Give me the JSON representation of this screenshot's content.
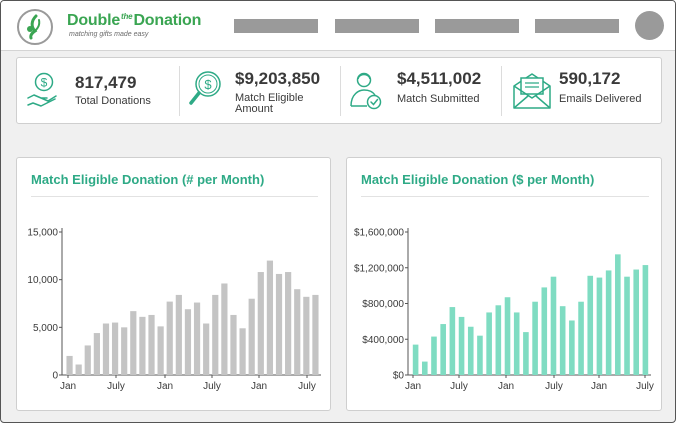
{
  "header": {
    "logo_word1": "Double",
    "logo_word2": "the",
    "logo_word3": "Donation",
    "logo_tagline": "matching gifts made easy",
    "logo_icon": "leaf-logo-icon"
  },
  "stats": [
    {
      "value": "817,479",
      "label": "Total Donations",
      "icon": "money-hand-icon"
    },
    {
      "value": "$9,203,850",
      "label_line1": "Match Eligible",
      "label_line2": "Amount",
      "icon": "dollar-search-icon"
    },
    {
      "value": "$4,511,002",
      "label": "Match Submitted",
      "icon": "person-check-icon"
    },
    {
      "value": "590,172",
      "label": "Emails Delivered",
      "icon": "envelope-icon"
    }
  ],
  "colors": {
    "brand_green": "#3aa552",
    "chart_teal": "#7fdcc2",
    "chart_gray": "#c4c4c4",
    "title_teal": "#2eaa86"
  },
  "chart_data": [
    {
      "type": "bar",
      "title": "Match Eligible Donation (# per Month)",
      "x_tick_labels": [
        "Jan",
        "July",
        "Jan",
        "July",
        "Jan",
        "July"
      ],
      "y_tick_labels": [
        "0",
        "5,000",
        "10,000",
        "15,000"
      ],
      "ylim": [
        0,
        15000
      ],
      "values": [
        2000,
        1100,
        3100,
        4400,
        5400,
        5500,
        5000,
        6700,
        6100,
        6300,
        5100,
        7700,
        8400,
        6900,
        7600,
        5400,
        8400,
        9600,
        6300,
        4900,
        8000,
        10800,
        12000,
        10600,
        10800,
        9000,
        8200,
        8400
      ],
      "color": "#c4c4c4"
    },
    {
      "type": "bar",
      "title": "Match Eligible Donation ($ per Month)",
      "x_tick_labels": [
        "Jan",
        "July",
        "Jan",
        "July",
        "Jan",
        "July"
      ],
      "y_tick_labels": [
        "$0",
        "$400,000",
        "$800,000",
        "$1,200,000",
        "$1,600,000"
      ],
      "ylim": [
        0,
        1600000
      ],
      "values": [
        340000,
        150000,
        430000,
        570000,
        760000,
        650000,
        540000,
        440000,
        700000,
        780000,
        870000,
        700000,
        480000,
        820000,
        980000,
        1100000,
        770000,
        610000,
        820000,
        1110000,
        1090000,
        1170000,
        1350000,
        1100000,
        1180000,
        1230000
      ],
      "color": "#7fdcc2"
    }
  ]
}
